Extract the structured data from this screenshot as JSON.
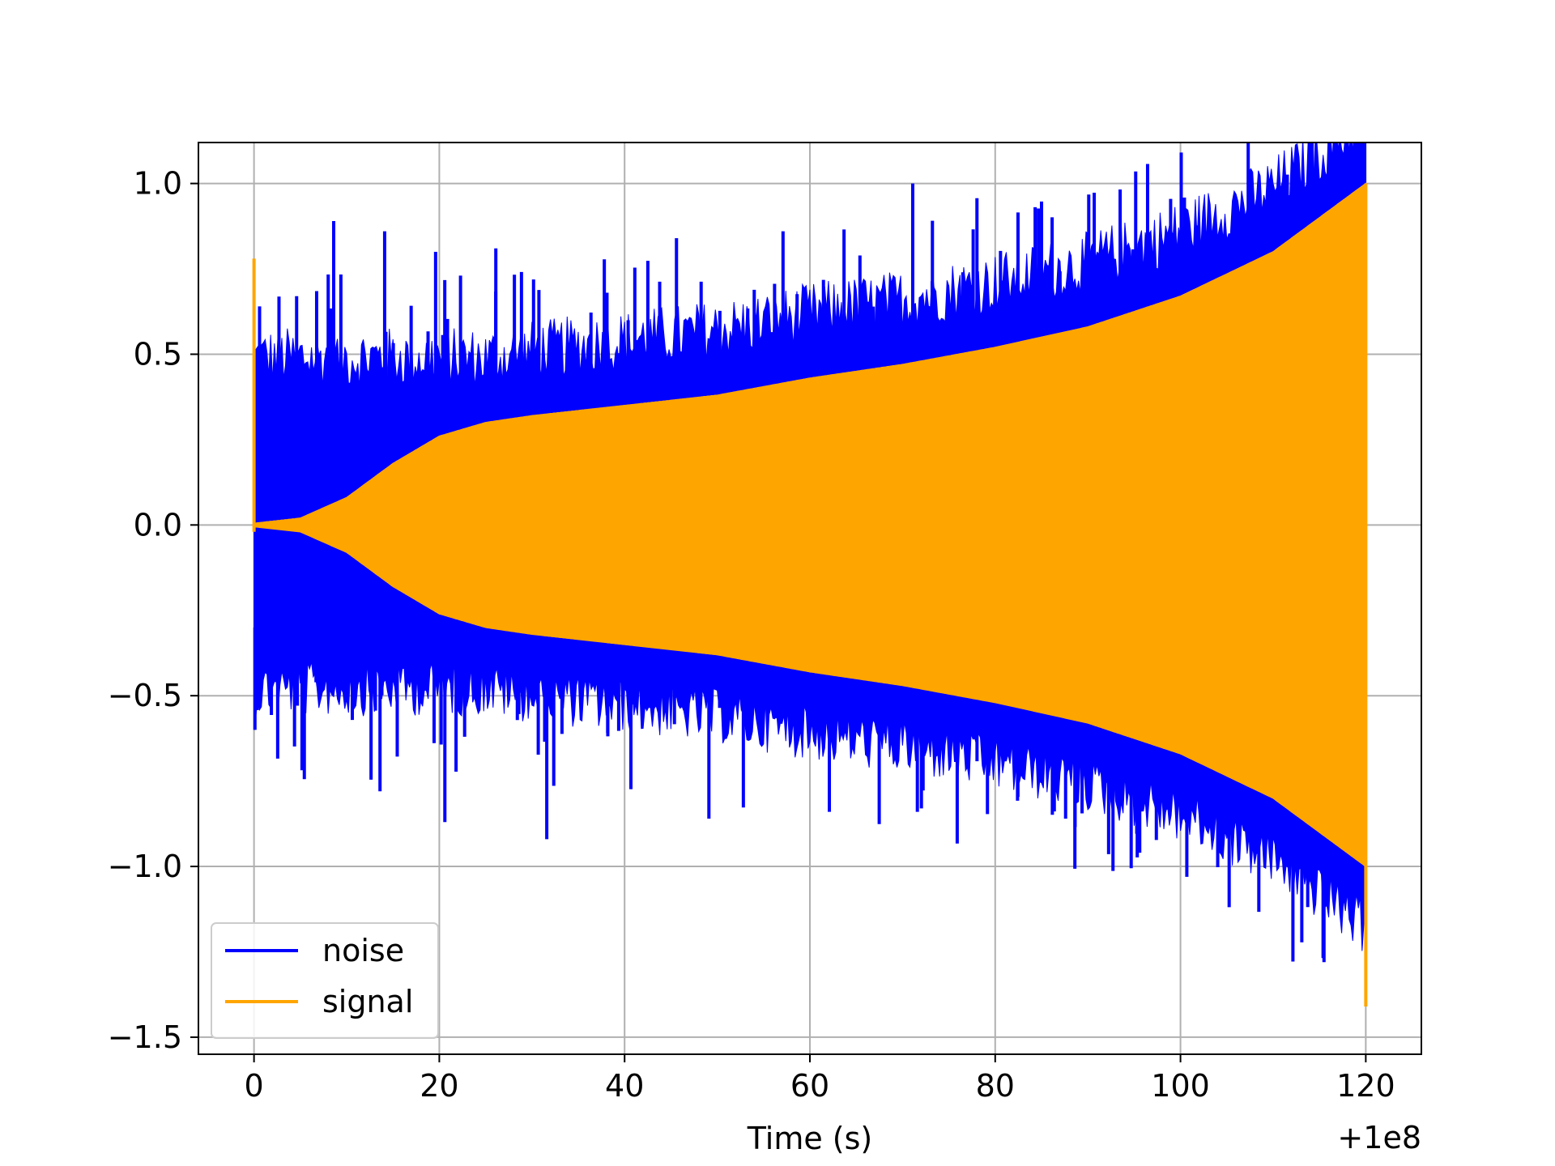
{
  "chart_data": {
    "type": "line",
    "title": "",
    "xlabel": "Time (s)",
    "ylabel": "",
    "x_offset_label": "+1e8",
    "xlim": [
      -6,
      126
    ],
    "ylim": [
      -1.55,
      1.12
    ],
    "x_ticks": [
      0,
      20,
      40,
      60,
      80,
      100,
      120
    ],
    "x_tick_labels": [
      "0",
      "20",
      "40",
      "60",
      "80",
      "100",
      "120"
    ],
    "y_ticks": [
      1.0,
      0.5,
      0.0,
      -0.5,
      -1.0,
      -1.5
    ],
    "y_tick_labels": [
      "1.0",
      "0.5",
      "0.0",
      "−0.5",
      "−1.0",
      "−1.5"
    ],
    "grid": true,
    "legend_position": "lower-left",
    "series": [
      {
        "name": "noise",
        "color": "#0000ff",
        "x_range": [
          0,
          120
        ],
        "approx_positive_peaks": [
          {
            "x": 0.6,
            "y": 0.64
          },
          {
            "x": 4.6,
            "y": 0.67
          },
          {
            "x": 8.6,
            "y": 0.89
          },
          {
            "x": 14.1,
            "y": 0.86
          },
          {
            "x": 19.6,
            "y": 0.8
          },
          {
            "x": 26.1,
            "y": 0.81
          },
          {
            "x": 38.1,
            "y": 0.68
          },
          {
            "x": 45.6,
            "y": 0.84
          },
          {
            "x": 57.1,
            "y": 0.86
          },
          {
            "x": 71.1,
            "y": 1.0
          },
          {
            "x": 95.6,
            "y": 0.8
          },
          {
            "x": 99.6,
            "y": 0.8
          }
        ],
        "approx_negative_peaks": [
          {
            "x": 0.1,
            "y": -0.6
          },
          {
            "x": 13.6,
            "y": -0.78
          },
          {
            "x": 20.6,
            "y": -0.87
          },
          {
            "x": 31.6,
            "y": -0.92
          },
          {
            "x": 49.1,
            "y": -0.86
          },
          {
            "x": 62.1,
            "y": -0.84
          },
          {
            "x": 71.6,
            "y": -0.84
          },
          {
            "x": 87.6,
            "y": -0.86
          },
          {
            "x": 95.6,
            "y": -0.96
          },
          {
            "x": 104.6,
            "y": -0.83
          }
        ]
      },
      {
        "name": "signal",
        "color": "#ffa500",
        "x_range": [
          0,
          120
        ],
        "envelope_x": [
          0,
          5,
          10,
          15,
          20,
          25,
          30,
          40,
          50,
          60,
          70,
          80,
          90,
          100,
          110,
          120
        ],
        "envelope_y": [
          0.005,
          0.02,
          0.08,
          0.18,
          0.26,
          0.3,
          0.32,
          0.35,
          0.38,
          0.43,
          0.47,
          0.52,
          0.58,
          0.67,
          0.8,
          1.0
        ],
        "start_spike": {
          "x": 0,
          "y_max": 0.78,
          "y_min": -0.02
        },
        "end_spike": {
          "x": 120,
          "y_max": 1.0,
          "y_min": -1.41
        }
      }
    ]
  }
}
